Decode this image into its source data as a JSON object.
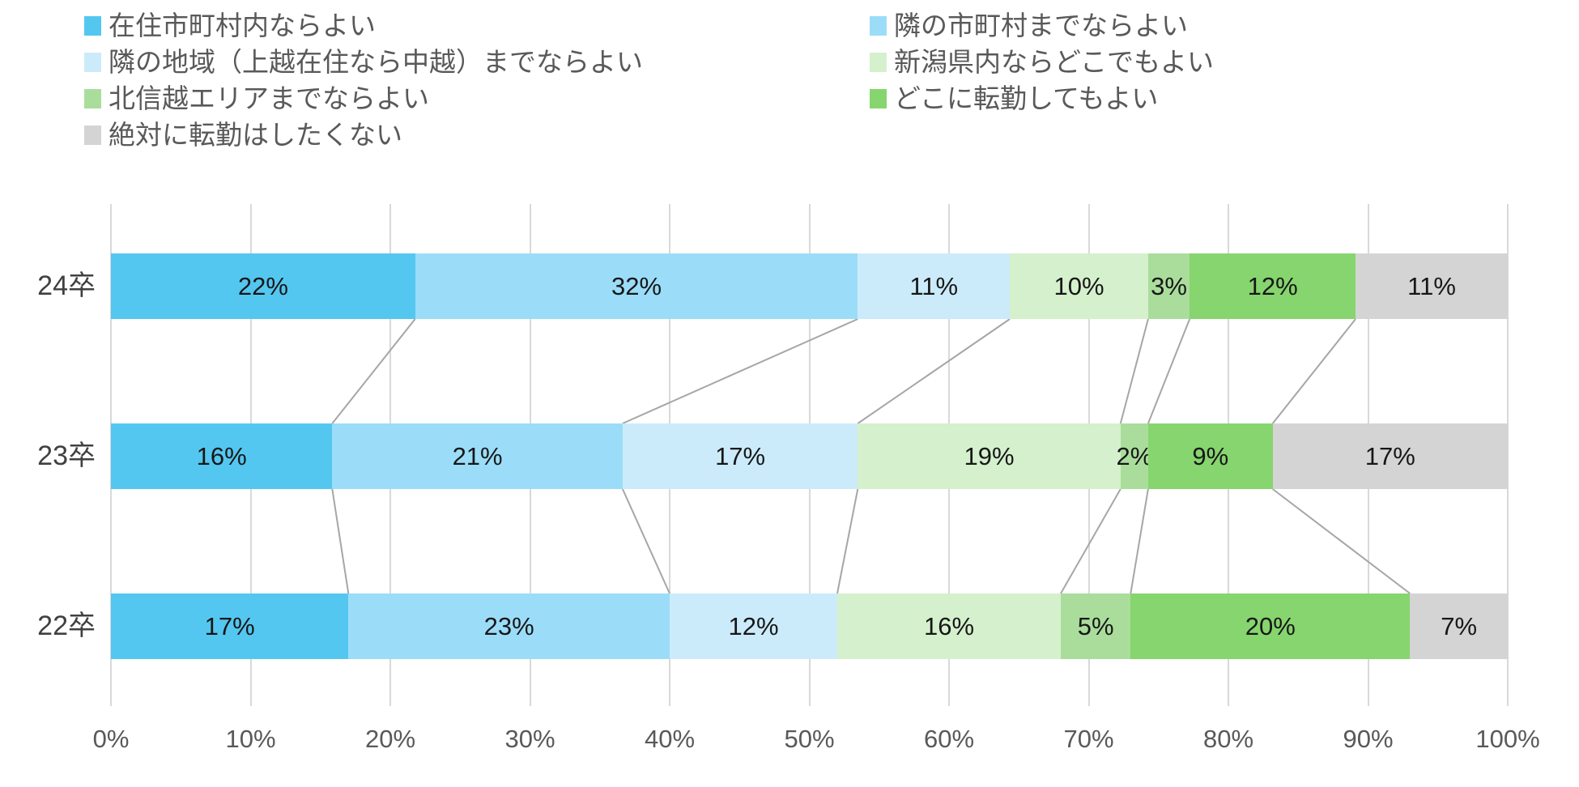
{
  "chart_data": {
    "type": "bar",
    "subtype": "horizontal-stacked-percent",
    "title": "",
    "categories": [
      "24卒",
      "23卒",
      "22卒"
    ],
    "series": [
      {
        "name": "在住市町村内ならよい",
        "color": "#54C7F0",
        "values": [
          22,
          16,
          17
        ]
      },
      {
        "name": "隣の市町村までならよい",
        "color": "#9BDDF8",
        "values": [
          32,
          21,
          23
        ]
      },
      {
        "name": "隣の地域（上越在住なら中越）までならよい",
        "color": "#CBEBFA",
        "values": [
          11,
          17,
          12
        ]
      },
      {
        "name": "新潟県内ならどこでもよい",
        "color": "#D5F0CD",
        "values": [
          10,
          19,
          16
        ]
      },
      {
        "name": "北信越エリアまでならよい",
        "color": "#AADD9C",
        "values": [
          3,
          2,
          5
        ]
      },
      {
        "name": "どこに転勤してもよい",
        "color": "#86D56E",
        "values": [
          12,
          9,
          20
        ]
      },
      {
        "name": "絶対に転勤はしたくない",
        "color": "#D4D4D4",
        "values": [
          11,
          17,
          7
        ]
      }
    ],
    "value_suffix": "%",
    "x_axis": {
      "min": 0,
      "max": 100,
      "tick_labels": [
        "0%",
        "10%",
        "20%",
        "30%",
        "40%",
        "50%",
        "60%",
        "70%",
        "80%",
        "90%",
        "100%"
      ]
    },
    "legend_position": "top",
    "grid": true
  },
  "style_colors": {
    "gridline": "#D9D9D9",
    "connector_line": "#A6A6A6",
    "legend_text": "#595959",
    "axis_text": "#595959",
    "category_text": "#404040",
    "bar_label_text": "#171717",
    "background": "#FFFFFF"
  }
}
